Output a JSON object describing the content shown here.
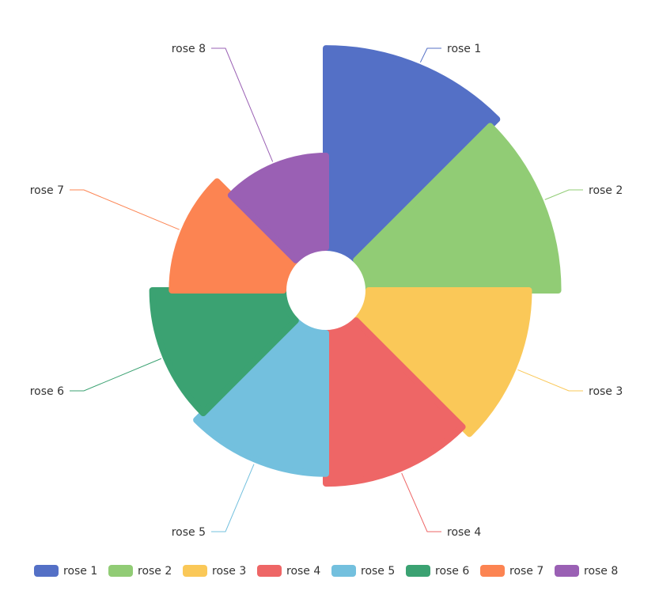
{
  "chart_data": {
    "type": "pie",
    "rose_type": "area",
    "categories": [
      "rose 1",
      "rose 2",
      "rose 3",
      "rose 4",
      "rose 5",
      "rose 6",
      "rose 7",
      "rose 8"
    ],
    "values": [
      40,
      38,
      32,
      30,
      28,
      26,
      22,
      18
    ],
    "colors": [
      "#5470c6",
      "#91cc75",
      "#fac858",
      "#ee6666",
      "#73c0de",
      "#3ba272",
      "#fc8452",
      "#9a60b4"
    ],
    "legend": {
      "position": "bottom",
      "entries": [
        "rose 1",
        "rose 2",
        "rose 3",
        "rose 4",
        "rose 5",
        "rose 6",
        "rose 7",
        "rose 8"
      ]
    }
  }
}
